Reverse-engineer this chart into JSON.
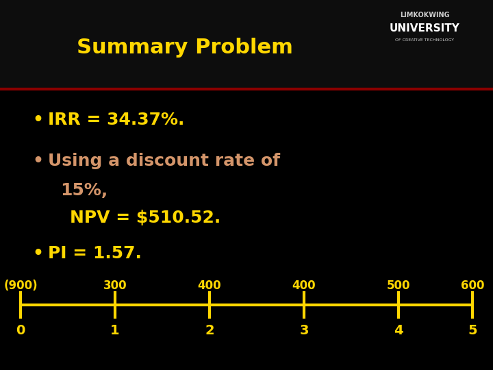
{
  "title": "Summary Problem",
  "title_color": "#FFD700",
  "title_fontsize": 22,
  "background_color": "#000000",
  "divider_color": "#8B0000",
  "bullet1": "IRR = 34.37%.",
  "bullet2_line1": "Using a discount rate of",
  "bullet2_line2": "15%,",
  "bullet2_line3": "NPV = $510.52.",
  "bullet3": "PI = 1.57.",
  "bullet_color": "#FFD700",
  "bullet2_color": "#D4956A",
  "timeline_labels_top": [
    "(900)",
    "300",
    "400",
    "400",
    "500",
    "600"
  ],
  "timeline_labels_bottom": [
    "0",
    "1",
    "2",
    "3",
    "4",
    "5"
  ],
  "timeline_color": "#FFD700",
  "logo_line1": "LIMKOKWING",
  "logo_line2": "UNIVERSITY",
  "logo_line3": "OF CREATIVE TECHNOLOGY",
  "logo_color1": "#CCCCCC",
  "logo_color2": "#FFFFFF"
}
